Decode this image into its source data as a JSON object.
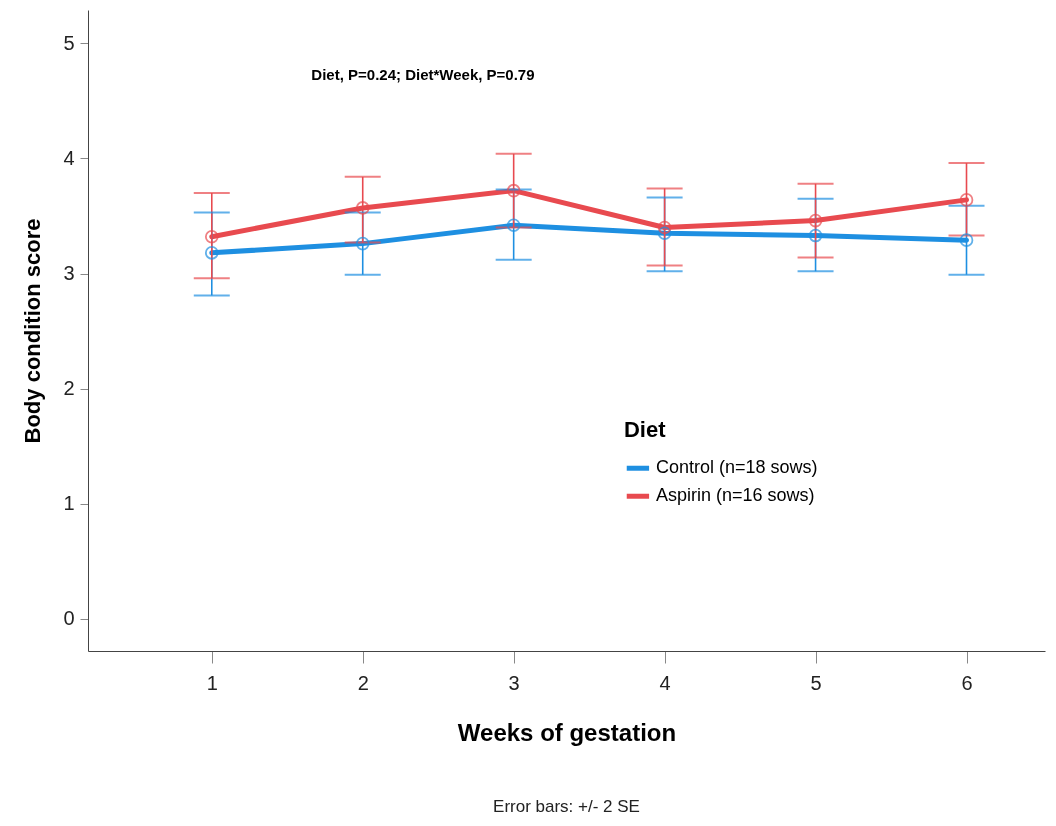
{
  "chart_data": {
    "type": "line",
    "xlabel": "Weeks of gestation",
    "ylabel": "Body condition score",
    "legend_title": "Diet",
    "x": [
      1,
      2,
      3,
      4,
      5,
      6
    ],
    "xlim": [
      0.18,
      6.52
    ],
    "xticks": [
      1,
      2,
      3,
      4,
      5,
      6
    ],
    "ylim": [
      -0.28,
      5.29
    ],
    "yticks": [
      0,
      1,
      2,
      3,
      4,
      5
    ],
    "series": [
      {
        "name": "Control (n=18 sows)",
        "color": "#1e8fe1",
        "values": [
          3.18,
          3.26,
          3.42,
          3.35,
          3.33,
          3.29
        ],
        "errors": [
          [
            2.81,
            3.53
          ],
          [
            2.99,
            3.53
          ],
          [
            3.12,
            3.73
          ],
          [
            3.02,
            3.66
          ],
          [
            3.02,
            3.65
          ],
          [
            2.99,
            3.59
          ]
        ]
      },
      {
        "name": "Aspirin (n=16 sows)",
        "color": "#e84a4f",
        "values": [
          3.32,
          3.57,
          3.72,
          3.4,
          3.46,
          3.64
        ],
        "errors": [
          [
            2.96,
            3.7
          ],
          [
            3.27,
            3.84
          ],
          [
            3.4,
            4.04
          ],
          [
            3.07,
            3.74
          ],
          [
            3.14,
            3.78
          ],
          [
            3.33,
            3.96
          ]
        ]
      }
    ],
    "marker": "circle",
    "line_style": "solid",
    "grid": false,
    "legend": "right",
    "annotations": [
      "Diet, P=0.24; Diet*Week, P=0.79",
      "Error bars: +/- 2 SE"
    ]
  }
}
